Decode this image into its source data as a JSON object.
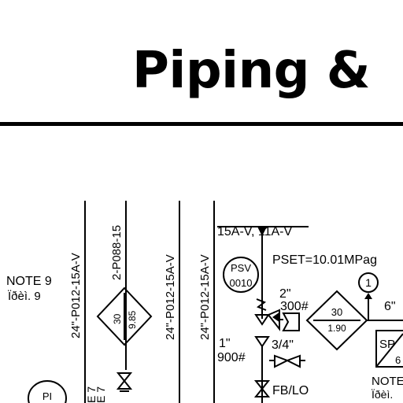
{
  "title": "Piping &",
  "notes": {
    "note9_label": "NOTE 9",
    "note9_sub": "Ïðèì. 9",
    "note_right_label": "NOTE",
    "note_right_sub": "Ïðèì."
  },
  "lines": {
    "line1": "24\"-P012-15A-V",
    "line2": "2-P088-15",
    "line3": "24\"-P012-15A-V",
    "line4": "24\"-P012-15A-V",
    "e1": "E 7",
    "e2": "E 7"
  },
  "diamond_left": {
    "top": "30",
    "bottom": "9.85"
  },
  "psv": {
    "tag_top": "PSV",
    "tag_bottom": "0010",
    "outlet_label": "15A-V, 11A-V",
    "set_pressure": "PSET=10.01MPag",
    "size_inlet": "2\"",
    "rating_inlet": "300#"
  },
  "diamond_right": {
    "top": "30",
    "bottom": "1.90"
  },
  "circle_1": "1",
  "size_6": "6\"",
  "size_1": "1\"",
  "rating_900": "900#",
  "size_34": "3/4\"",
  "fb_lo": "FB/LO",
  "instrument_pi": "PI",
  "sp_box": {
    "top": "SP",
    "bottom": "6"
  }
}
